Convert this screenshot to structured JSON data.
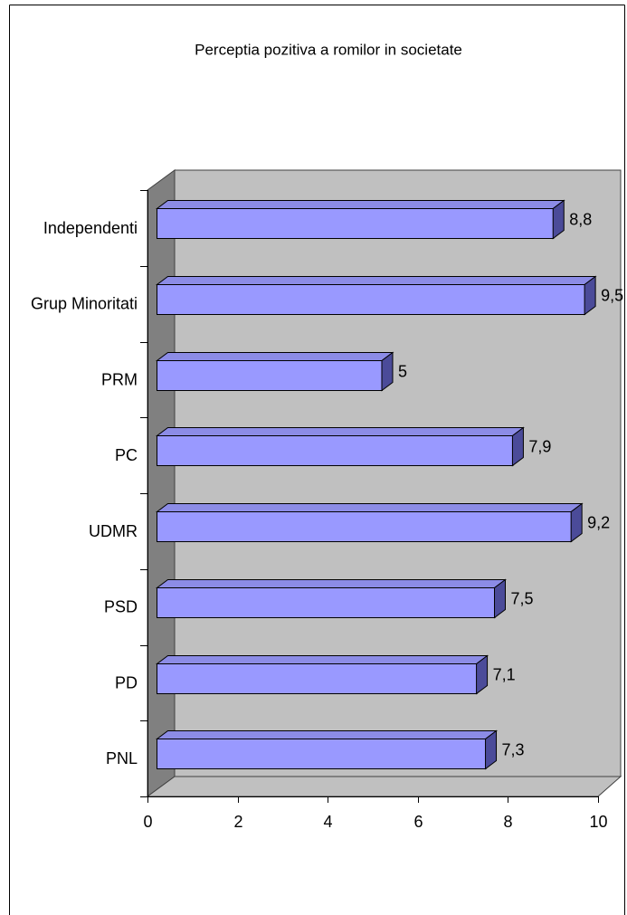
{
  "chart_data": {
    "type": "bar",
    "orientation": "horizontal",
    "three_d": true,
    "title": "Perceptia pozitiva a romilor in societate",
    "categories": [
      "Independenti",
      "Grup Minoritati",
      "PRM",
      "PC",
      "UDMR",
      "PSD",
      "PD",
      "PNL"
    ],
    "values": [
      8.8,
      9.5,
      5,
      7.9,
      9.2,
      7.5,
      7.1,
      7.3
    ],
    "data_labels": [
      "8,8",
      "9,5",
      "5",
      "7,9",
      "9,2",
      "7,5",
      "7,1",
      "7,3"
    ],
    "xlim": [
      0,
      10
    ],
    "xticks": [
      0,
      2,
      4,
      6,
      8,
      10
    ],
    "grid": false,
    "colors": {
      "bar_front": "#9999FF",
      "bar_top": "#8C8CE6",
      "bar_side": "#4B4B99",
      "back_wall": "#C0C0C0",
      "side_wall": "#808080",
      "floor": "#C0C0C0"
    }
  }
}
